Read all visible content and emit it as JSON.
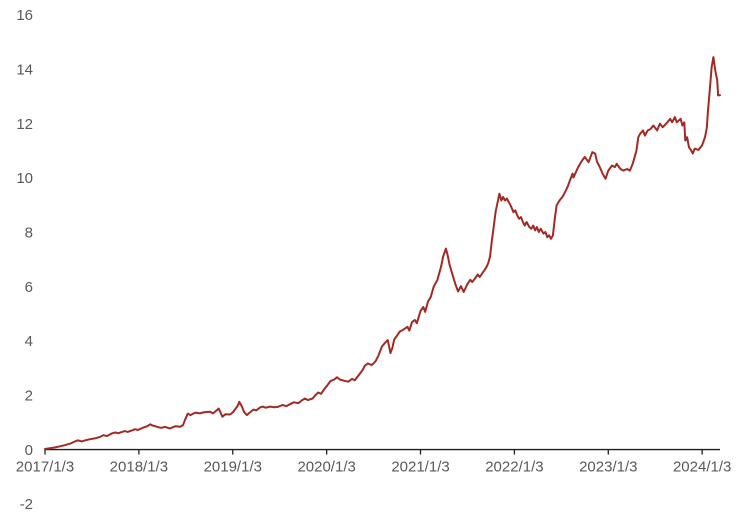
{
  "chart_data": {
    "type": "line",
    "title": "",
    "xlabel": "",
    "ylabel": "",
    "grid": false,
    "legend": null,
    "x_tick_labels": [
      "2017/1/3",
      "2018/1/3",
      "2019/1/3",
      "2020/1/3",
      "2021/1/3",
      "2022/1/3",
      "2023/1/3",
      "2024/1/3"
    ],
    "y_tick_labels": [
      "16",
      "14",
      "12",
      "10",
      "8",
      "6",
      "4",
      "2",
      "0",
      "-2"
    ],
    "y_tick_values": [
      16,
      14,
      12,
      10,
      8,
      6,
      4,
      2,
      0,
      -2
    ],
    "ylim": [
      -2,
      16
    ],
    "xlim_years_since_first_tick": [
      0,
      7.19
    ],
    "x_unit": "years since 2017/1/3",
    "axis_color": "#1f1f1f",
    "label_color": "#595959",
    "series": [
      {
        "name": "cumulative-value-line",
        "color": "#A22A24",
        "points": [
          [
            0.0,
            0.02
          ],
          [
            0.05,
            0.05
          ],
          [
            0.11,
            0.08
          ],
          [
            0.16,
            0.12
          ],
          [
            0.21,
            0.16
          ],
          [
            0.27,
            0.22
          ],
          [
            0.32,
            0.3
          ],
          [
            0.35,
            0.34
          ],
          [
            0.39,
            0.3
          ],
          [
            0.43,
            0.34
          ],
          [
            0.48,
            0.38
          ],
          [
            0.53,
            0.41
          ],
          [
            0.59,
            0.47
          ],
          [
            0.62,
            0.53
          ],
          [
            0.66,
            0.5
          ],
          [
            0.71,
            0.59
          ],
          [
            0.75,
            0.63
          ],
          [
            0.78,
            0.6
          ],
          [
            0.82,
            0.65
          ],
          [
            0.85,
            0.68
          ],
          [
            0.88,
            0.65
          ],
          [
            0.93,
            0.71
          ],
          [
            0.96,
            0.75
          ],
          [
            0.99,
            0.72
          ],
          [
            1.04,
            0.8
          ],
          [
            1.09,
            0.86
          ],
          [
            1.12,
            0.93
          ],
          [
            1.15,
            0.88
          ],
          [
            1.19,
            0.84
          ],
          [
            1.23,
            0.8
          ],
          [
            1.28,
            0.83
          ],
          [
            1.33,
            0.78
          ],
          [
            1.39,
            0.86
          ],
          [
            1.44,
            0.84
          ],
          [
            1.47,
            0.9
          ],
          [
            1.49,
            1.08
          ],
          [
            1.52,
            1.32
          ],
          [
            1.55,
            1.27
          ],
          [
            1.6,
            1.36
          ],
          [
            1.65,
            1.33
          ],
          [
            1.7,
            1.38
          ],
          [
            1.76,
            1.39
          ],
          [
            1.79,
            1.33
          ],
          [
            1.83,
            1.45
          ],
          [
            1.85,
            1.51
          ],
          [
            1.89,
            1.21
          ],
          [
            1.92,
            1.3
          ],
          [
            1.97,
            1.29
          ],
          [
            2.0,
            1.37
          ],
          [
            2.05,
            1.6
          ],
          [
            2.07,
            1.76
          ],
          [
            2.1,
            1.57
          ],
          [
            2.12,
            1.39
          ],
          [
            2.15,
            1.27
          ],
          [
            2.18,
            1.36
          ],
          [
            2.22,
            1.47
          ],
          [
            2.25,
            1.44
          ],
          [
            2.29,
            1.55
          ],
          [
            2.32,
            1.58
          ],
          [
            2.35,
            1.54
          ],
          [
            2.4,
            1.58
          ],
          [
            2.44,
            1.56
          ],
          [
            2.48,
            1.57
          ],
          [
            2.53,
            1.64
          ],
          [
            2.57,
            1.6
          ],
          [
            2.61,
            1.67
          ],
          [
            2.65,
            1.74
          ],
          [
            2.7,
            1.71
          ],
          [
            2.74,
            1.82
          ],
          [
            2.77,
            1.88
          ],
          [
            2.8,
            1.82
          ],
          [
            2.85,
            1.88
          ],
          [
            2.88,
            2.0
          ],
          [
            2.91,
            2.1
          ],
          [
            2.94,
            2.05
          ],
          [
            2.97,
            2.2
          ],
          [
            3.0,
            2.33
          ],
          [
            3.04,
            2.52
          ],
          [
            3.08,
            2.58
          ],
          [
            3.11,
            2.66
          ],
          [
            3.14,
            2.58
          ],
          [
            3.19,
            2.53
          ],
          [
            3.23,
            2.5
          ],
          [
            3.27,
            2.6
          ],
          [
            3.3,
            2.55
          ],
          [
            3.34,
            2.73
          ],
          [
            3.38,
            2.91
          ],
          [
            3.41,
            3.1
          ],
          [
            3.44,
            3.17
          ],
          [
            3.48,
            3.11
          ],
          [
            3.52,
            3.25
          ],
          [
            3.55,
            3.45
          ],
          [
            3.59,
            3.8
          ],
          [
            3.62,
            3.92
          ],
          [
            3.65,
            4.03
          ],
          [
            3.68,
            3.55
          ],
          [
            3.7,
            3.75
          ],
          [
            3.72,
            4.05
          ],
          [
            3.75,
            4.2
          ],
          [
            3.78,
            4.35
          ],
          [
            3.81,
            4.4
          ],
          [
            3.86,
            4.52
          ],
          [
            3.88,
            4.38
          ],
          [
            3.91,
            4.7
          ],
          [
            3.94,
            4.77
          ],
          [
            3.96,
            4.65
          ],
          [
            4.0,
            5.1
          ],
          [
            4.03,
            5.25
          ],
          [
            4.05,
            5.07
          ],
          [
            4.08,
            5.45
          ],
          [
            4.11,
            5.62
          ],
          [
            4.14,
            6.0
          ],
          [
            4.18,
            6.25
          ],
          [
            4.2,
            6.5
          ],
          [
            4.22,
            6.75
          ],
          [
            4.24,
            7.1
          ],
          [
            4.27,
            7.4
          ],
          [
            4.29,
            7.15
          ],
          [
            4.31,
            6.8
          ],
          [
            4.34,
            6.45
          ],
          [
            4.37,
            6.1
          ],
          [
            4.4,
            5.82
          ],
          [
            4.43,
            6.02
          ],
          [
            4.46,
            5.8
          ],
          [
            4.5,
            6.1
          ],
          [
            4.53,
            6.25
          ],
          [
            4.55,
            6.17
          ],
          [
            4.58,
            6.3
          ],
          [
            4.61,
            6.45
          ],
          [
            4.63,
            6.35
          ],
          [
            4.67,
            6.55
          ],
          [
            4.7,
            6.7
          ],
          [
            4.72,
            6.85
          ],
          [
            4.74,
            7.1
          ],
          [
            4.76,
            7.7
          ],
          [
            4.78,
            8.2
          ],
          [
            4.8,
            8.75
          ],
          [
            4.84,
            9.42
          ],
          [
            4.86,
            9.17
          ],
          [
            4.88,
            9.3
          ],
          [
            4.9,
            9.17
          ],
          [
            4.92,
            9.24
          ],
          [
            4.94,
            9.11
          ],
          [
            4.96,
            8.99
          ],
          [
            4.99,
            8.74
          ],
          [
            5.01,
            8.81
          ],
          [
            5.03,
            8.62
          ],
          [
            5.05,
            8.5
          ],
          [
            5.07,
            8.56
          ],
          [
            5.09,
            8.38
          ],
          [
            5.11,
            8.25
          ],
          [
            5.13,
            8.38
          ],
          [
            5.16,
            8.19
          ],
          [
            5.18,
            8.13
          ],
          [
            5.2,
            8.25
          ],
          [
            5.22,
            8.07
          ],
          [
            5.24,
            8.19
          ],
          [
            5.26,
            8.01
          ],
          [
            5.28,
            8.13
          ],
          [
            5.31,
            7.95
          ],
          [
            5.33,
            8.01
          ],
          [
            5.35,
            7.82
          ],
          [
            5.37,
            7.89
          ],
          [
            5.39,
            7.76
          ],
          [
            5.41,
            7.89
          ],
          [
            5.43,
            8.5
          ],
          [
            5.45,
            8.99
          ],
          [
            5.48,
            9.17
          ],
          [
            5.51,
            9.3
          ],
          [
            5.53,
            9.42
          ],
          [
            5.55,
            9.55
          ],
          [
            5.57,
            9.7
          ],
          [
            5.59,
            9.9
          ],
          [
            5.62,
            10.16
          ],
          [
            5.63,
            10.02
          ],
          [
            5.68,
            10.4
          ],
          [
            5.72,
            10.64
          ],
          [
            5.75,
            10.77
          ],
          [
            5.79,
            10.58
          ],
          [
            5.83,
            10.95
          ],
          [
            5.86,
            10.9
          ],
          [
            5.88,
            10.6
          ],
          [
            5.91,
            10.4
          ],
          [
            5.94,
            10.16
          ],
          [
            5.97,
            9.97
          ],
          [
            6.0,
            10.27
          ],
          [
            6.04,
            10.46
          ],
          [
            6.07,
            10.4
          ],
          [
            6.09,
            10.52
          ],
          [
            6.13,
            10.33
          ],
          [
            6.16,
            10.27
          ],
          [
            6.2,
            10.33
          ],
          [
            6.23,
            10.27
          ],
          [
            6.26,
            10.52
          ],
          [
            6.3,
            11.0
          ],
          [
            6.32,
            11.5
          ],
          [
            6.34,
            11.63
          ],
          [
            6.37,
            11.75
          ],
          [
            6.39,
            11.56
          ],
          [
            6.42,
            11.75
          ],
          [
            6.45,
            11.8
          ],
          [
            6.48,
            11.93
          ],
          [
            6.52,
            11.75
          ],
          [
            6.55,
            12.0
          ],
          [
            6.58,
            11.87
          ],
          [
            6.63,
            12.05
          ],
          [
            6.66,
            12.18
          ],
          [
            6.68,
            12.05
          ],
          [
            6.71,
            12.24
          ],
          [
            6.73,
            12.05
          ],
          [
            6.77,
            12.18
          ],
          [
            6.79,
            11.93
          ],
          [
            6.81,
            12.05
          ],
          [
            6.82,
            11.38
          ],
          [
            6.84,
            11.5
          ],
          [
            6.86,
            11.13
          ],
          [
            6.88,
            11.03
          ],
          [
            6.9,
            10.9
          ],
          [
            6.92,
            11.08
          ],
          [
            6.96,
            11.03
          ],
          [
            7.0,
            11.21
          ],
          [
            7.03,
            11.5
          ],
          [
            7.05,
            11.87
          ],
          [
            7.06,
            12.4
          ],
          [
            7.08,
            13.2
          ],
          [
            7.1,
            14.07
          ],
          [
            7.12,
            14.45
          ],
          [
            7.14,
            13.95
          ],
          [
            7.16,
            13.6
          ],
          [
            7.17,
            13.04
          ],
          [
            7.19,
            13.05
          ]
        ]
      }
    ]
  }
}
